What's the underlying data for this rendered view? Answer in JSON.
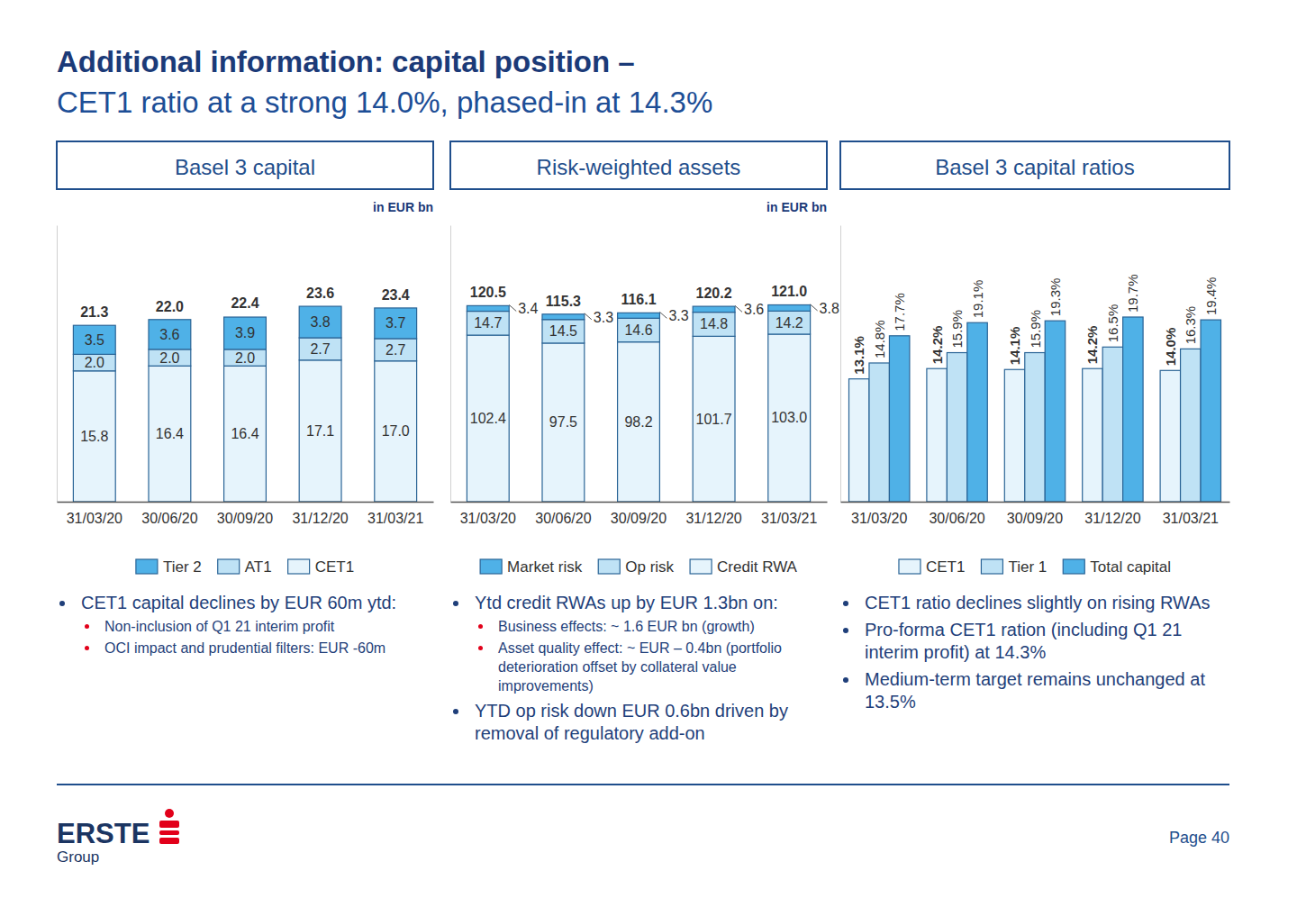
{
  "title": "Additional information: capital position –",
  "subtitle": "CET1 ratio at a strong 14.0%, phased-in at 14.3%",
  "chart_data": [
    {
      "type": "bar",
      "stacked": true,
      "title": "Basel 3 capital",
      "subtitle": "in EUR bn",
      "categories": [
        "31/03/20",
        "30/06/20",
        "30/09/20",
        "31/12/20",
        "31/03/21"
      ],
      "series": [
        {
          "name": "CET1",
          "color": "#e6f4fc",
          "values": [
            15.8,
            16.4,
            16.4,
            17.1,
            17.0
          ],
          "value_labels": [
            "15.8",
            "16.4",
            "16.4",
            "17.1",
            "17.0"
          ]
        },
        {
          "name": "AT1",
          "color": "#bfe2f5",
          "values": [
            2.0,
            2.0,
            2.0,
            2.7,
            2.7
          ],
          "value_labels": [
            "2.0",
            "2.0",
            "2.0",
            "2.7",
            "2.7"
          ]
        },
        {
          "name": "Tier 2",
          "color": "#4fb1e7",
          "values": [
            3.5,
            3.6,
            3.9,
            3.8,
            3.7
          ],
          "value_labels": [
            "3.5",
            "3.6",
            "3.9",
            "3.8",
            "3.7"
          ]
        }
      ],
      "totals": [
        21.3,
        22.0,
        22.4,
        23.6,
        23.4
      ],
      "total_labels": [
        "21.3",
        "22.0",
        "22.4",
        "23.6",
        "23.4"
      ],
      "ylim": [
        0,
        33.4
      ],
      "tick_labels": "x",
      "grid": false,
      "data_labels": true,
      "legend": "bottom",
      "notes": [
        {
          "text": "CET1 capital declines by EUR 60m ytd:",
          "items": [
            "Non-inclusion of Q1 21 interim profit",
            "OCI impact and prudential filters: EUR -60m"
          ]
        }
      ]
    },
    {
      "type": "bar",
      "stacked": true,
      "title": "Risk-weighted assets",
      "subtitle": "in EUR bn",
      "categories": [
        "31/03/20",
        "30/06/20",
        "30/09/20",
        "31/12/20",
        "31/03/21"
      ],
      "series": [
        {
          "name": "Credit RWA",
          "color": "#e6f4fc",
          "values": [
            102.4,
            97.5,
            98.2,
            101.7,
            103.0
          ],
          "value_labels": [
            "102.4",
            "97.5",
            "98.2",
            "101.7",
            "103.0"
          ]
        },
        {
          "name": "Op risk",
          "color": "#bfe2f5",
          "values": [
            14.7,
            14.5,
            14.6,
            14.8,
            14.2
          ],
          "value_labels": [
            "14.7",
            "14.5",
            "14.6",
            "14.8",
            "14.2"
          ]
        },
        {
          "name": "Market risk",
          "color": "#4fb1e7",
          "values": [
            3.4,
            3.3,
            3.3,
            3.6,
            3.8
          ],
          "value_labels": [
            "3.4",
            "3.3",
            "3.3",
            "3.6",
            "3.8"
          ]
        }
      ],
      "totals": [
        120.5,
        115.3,
        116.1,
        120.2,
        121.0
      ],
      "total_labels": [
        "120.5",
        "115.3",
        "116.1",
        "120.2",
        "121.0"
      ],
      "ylim": [
        0,
        170
      ],
      "tick_labels": "x",
      "grid": false,
      "data_labels": true,
      "legend": "bottom",
      "notes": [
        {
          "text": "Ytd credit RWAs up by EUR 1.3bn on:",
          "items": [
            "Business effects: ~ 1.6 EUR bn (growth)",
            "Asset quality effect: ~ EUR – 0.4bn (portfolio deterioration offset by collateral value improvements)"
          ]
        },
        {
          "text": "YTD op risk down EUR 0.6bn driven by removal of regulatory add-on",
          "items": []
        }
      ]
    },
    {
      "type": "bar",
      "stacked": false,
      "title": "Basel 3 capital ratios",
      "categories": [
        "31/03/20",
        "30/06/20",
        "30/09/20",
        "31/12/20",
        "31/03/21"
      ],
      "series": [
        {
          "name": "CET1",
          "color": "#e6f4fc",
          "values": [
            13.1,
            14.2,
            14.1,
            14.2,
            14.0
          ],
          "value_labels": [
            "13.1%",
            "14.2%",
            "14.1%",
            "14.2%",
            "14.0%"
          ]
        },
        {
          "name": "Tier 1",
          "color": "#bfe2f5",
          "values": [
            14.8,
            15.9,
            15.9,
            16.5,
            16.3
          ],
          "value_labels": [
            "14.8%",
            "15.9%",
            "15.9%",
            "16.5%",
            "16.3%"
          ]
        },
        {
          "name": "Total capital",
          "color": "#4fb1e7",
          "values": [
            17.7,
            19.1,
            19.3,
            19.7,
            19.4
          ],
          "value_labels": [
            "17.7%",
            "19.1%",
            "19.3%",
            "19.7%",
            "19.4%"
          ]
        }
      ],
      "ylim": [
        0,
        29.5
      ],
      "tick_labels": "x",
      "grid": false,
      "data_labels": true,
      "legend": "bottom",
      "notes": [
        {
          "text": "CET1 ratio declines slightly on rising RWAs",
          "items": []
        },
        {
          "text": "Pro-forma CET1 ration (including Q1 21 interim profit) at 14.3%",
          "items": []
        },
        {
          "text": "Medium-term target remains unchanged at 13.5%",
          "items": []
        }
      ]
    }
  ],
  "logo": {
    "name": "ERSTE",
    "group": "Group"
  },
  "page": "Page 40"
}
